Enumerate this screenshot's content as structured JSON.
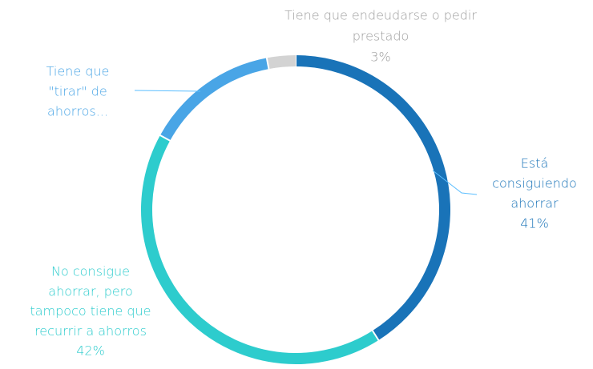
{
  "chart_data": {
    "type": "donut",
    "categories": [
      [
        "Está",
        "consiguiendo",
        "ahorrar"
      ],
      [
        "No consigue",
        "ahorrar, pero",
        "tampoco tiene que",
        "recurrir a ahorros"
      ],
      [
        "Tiene que",
        "\"tirar\" de",
        "ahorros..."
      ],
      [
        "Tiene que endeudarse o pedir",
        "prestado"
      ]
    ],
    "values": [
      41,
      42,
      14,
      3
    ],
    "value_labels": [
      "41%",
      "42%",
      null,
      "3%"
    ],
    "colors": [
      "#1973b8",
      "#2dcccd",
      "#49a5e6",
      "#d3d3d3"
    ],
    "label_colors": [
      "#1973b8",
      "#2dcccd",
      "#49a5e6",
      "#9e9e9e"
    ]
  }
}
